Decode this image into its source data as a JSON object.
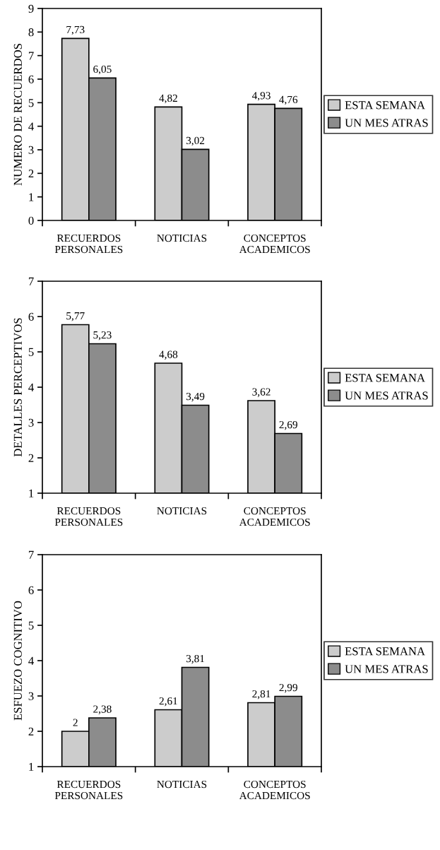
{
  "chart_data": [
    {
      "type": "bar",
      "ylabel": "NUMERO DE RECUERDOS",
      "categories": [
        "RECUERDOS\nPERSONALES",
        "NOTICIAS",
        "CONCEPTOS\nACADEMICOS"
      ],
      "series": [
        {
          "name": "ESTA SEMANA",
          "color": "#cccccc",
          "values": [
            7.73,
            4.82,
            4.93
          ],
          "value_labels": [
            "7,73",
            "4,82",
            "4,93"
          ]
        },
        {
          "name": "UN MES ATRAS",
          "color": "#8c8c8c",
          "values": [
            6.05,
            3.02,
            4.76
          ],
          "value_labels": [
            "6,05",
            "3,02",
            "4,76"
          ]
        }
      ],
      "ylim": [
        0,
        9
      ],
      "yticks": [
        0,
        1,
        2,
        3,
        4,
        5,
        6,
        7,
        8,
        9
      ],
      "legend": "right",
      "grid": false
    },
    {
      "type": "bar",
      "ylabel": "DETALLES PERCEPTIVOS",
      "categories": [
        "RECUERDOS\nPERSONALES",
        "NOTICIAS",
        "CONCEPTOS\nACADEMICOS"
      ],
      "series": [
        {
          "name": "ESTA SEMANA",
          "color": "#cccccc",
          "values": [
            5.77,
            4.68,
            3.62
          ],
          "value_labels": [
            "5,77",
            "4,68",
            "3,62"
          ]
        },
        {
          "name": "UN MES ATRAS",
          "color": "#8c8c8c",
          "values": [
            5.23,
            3.49,
            2.69
          ],
          "value_labels": [
            "5,23",
            "3,49",
            "2,69"
          ]
        }
      ],
      "ylim": [
        1,
        7
      ],
      "yticks": [
        1,
        2,
        3,
        4,
        5,
        6,
        7
      ],
      "legend": "right",
      "grid": false
    },
    {
      "type": "bar",
      "ylabel": "ESFUEZO COGNITIVO",
      "categories": [
        "RECUERDOS\nPERSONALES",
        "NOTICIAS",
        "CONCEPTOS\nACADEMICOS"
      ],
      "series": [
        {
          "name": "ESTA SEMANA",
          "color": "#cccccc",
          "values": [
            2,
            2.61,
            2.81
          ],
          "value_labels": [
            "2",
            "2,61",
            "2,81"
          ]
        },
        {
          "name": "UN MES ATRAS",
          "color": "#8c8c8c",
          "values": [
            2.38,
            3.81,
            2.99
          ],
          "value_labels": [
            "2,38",
            "3,81",
            "2,99"
          ]
        }
      ],
      "ylim": [
        1,
        7
      ],
      "yticks": [
        1,
        2,
        3,
        4,
        5,
        6,
        7
      ],
      "legend": "right",
      "grid": false
    }
  ]
}
